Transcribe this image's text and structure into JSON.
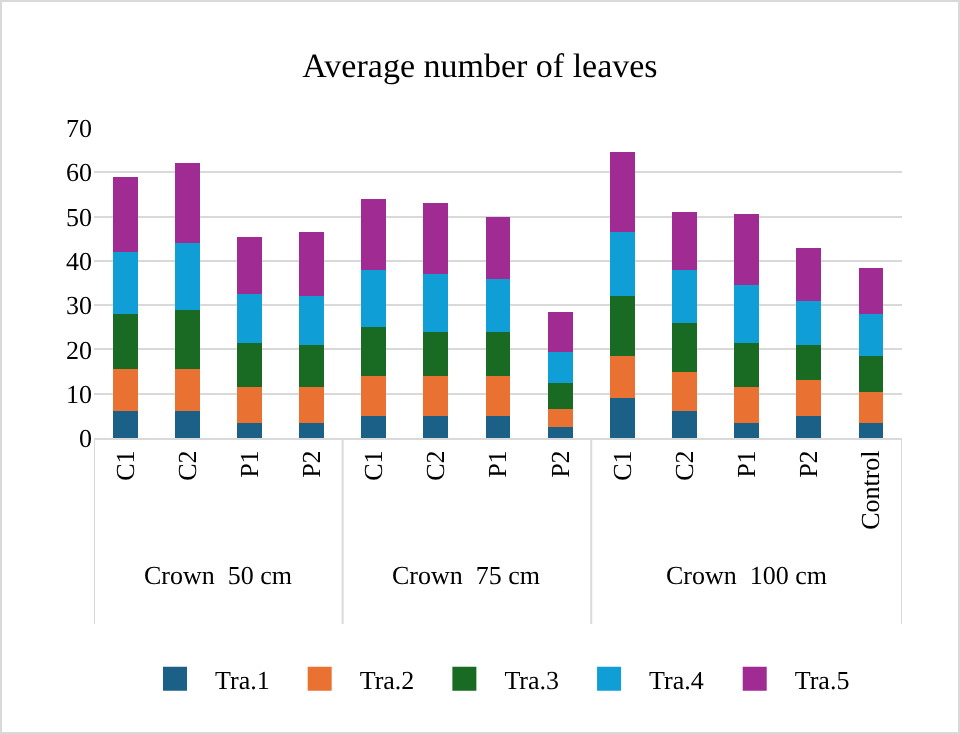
{
  "chart_data": {
    "type": "bar",
    "title": "Average number of leaves",
    "stacked": true,
    "categories": [
      "C1",
      "C2",
      "P1",
      "P2",
      "C1",
      "C2",
      "P1",
      "P2",
      "C1",
      "C2",
      "P1",
      "P2",
      "Control"
    ],
    "annotations": [
      "Crown  50 cm",
      "Crown  75 cm",
      "Crown  100 cm"
    ],
    "series": [
      {
        "name": "Tra.1",
        "color": "#1b6086",
        "values": [
          6,
          6,
          3.5,
          3.5,
          5,
          5,
          5,
          2.5,
          9,
          6,
          3.5,
          5,
          3.5
        ]
      },
      {
        "name": "Tra.2",
        "color": "#e97132",
        "values": [
          9.5,
          9.5,
          8,
          8,
          9,
          9,
          9,
          4,
          9.5,
          9,
          8,
          8,
          7
        ]
      },
      {
        "name": "Tra.3",
        "color": "#196b24",
        "values": [
          12.5,
          13.5,
          10,
          9.5,
          11,
          10,
          10,
          6,
          13.5,
          11,
          10,
          8,
          8
        ]
      },
      {
        "name": "Tra.4",
        "color": "#0f9ed5",
        "values": [
          14,
          15,
          11,
          11,
          13,
          13,
          12,
          7,
          14.5,
          12,
          13,
          10,
          9.5
        ]
      },
      {
        "name": "Tra.5",
        "color": "#a02b93",
        "values": [
          17,
          18,
          13,
          14.5,
          16,
          16,
          14,
          9,
          18,
          13,
          16,
          12,
          10.5
        ]
      }
    ],
    "ylim": [
      0,
      70
    ],
    "yticks": [
      0,
      10,
      20,
      30,
      40,
      50,
      60,
      70
    ],
    "grid": "y",
    "legend": "bottom"
  }
}
